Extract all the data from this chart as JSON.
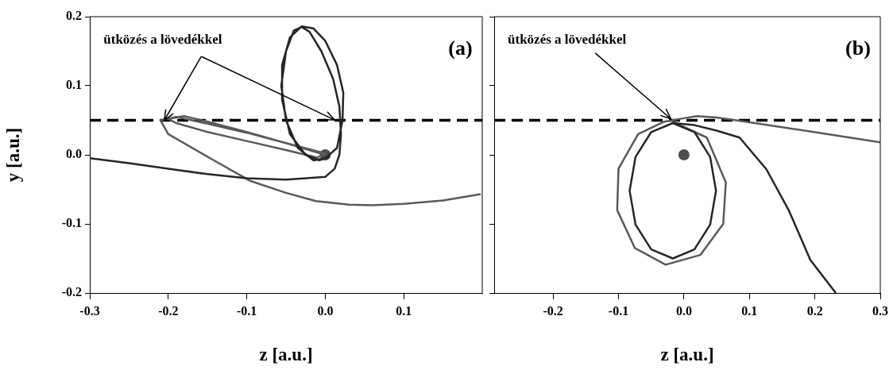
{
  "chart_data": [
    {
      "type": "line",
      "xlabel": "z [a.u.]",
      "ylabel": "y [a.u.]",
      "xlim": [
        -0.3,
        0.2
      ],
      "ylim": [
        -0.2,
        0.2
      ],
      "xticks": [
        -0.3,
        -0.2,
        -0.1,
        {
          "value": 0,
          "label": "0.0"
        },
        0.1
      ],
      "yticks": [
        -0.2,
        -0.1,
        {
          "value": 0,
          "label": "0.0"
        },
        0.1,
        0.2
      ],
      "grid": false,
      "legend": false,
      "marker": "none",
      "ref_lines": [
        {
          "axis": "y",
          "value": 0.05,
          "color": "#000000",
          "line_style": "dashed"
        }
      ],
      "annotations": [
        {
          "text": "ütközés a lövedékkel",
          "x": -0.205,
          "y": 0.05
        },
        "(a)"
      ],
      "series": [
        {
          "color": "#262626",
          "x": [
            -0.3,
            -0.25,
            -0.2,
            -0.15,
            -0.1,
            -0.05,
            0.0,
            0.012,
            0.018,
            0.02,
            0.018,
            0.01,
            -0.005,
            -0.02,
            -0.03,
            -0.04,
            -0.05,
            -0.056,
            -0.05,
            -0.035,
            -0.015,
            0.0,
            0.015,
            0.022,
            0.023,
            0.015,
            0.0,
            -0.015,
            -0.03,
            -0.045,
            -0.055,
            -0.055,
            -0.045,
            -0.025,
            -0.008,
            0.005
          ],
          "values": [
            -0.005,
            -0.012,
            -0.02,
            -0.028,
            -0.034,
            -0.036,
            -0.032,
            -0.02,
            0.0,
            0.03,
            0.07,
            0.11,
            0.15,
            0.178,
            0.185,
            0.18,
            0.15,
            0.1,
            0.05,
            0.01,
            -0.008,
            -0.005,
            0.01,
            0.05,
            0.09,
            0.13,
            0.165,
            0.183,
            0.186,
            0.17,
            0.13,
            0.08,
            0.03,
            0.0,
            -0.008,
            -0.003
          ]
        },
        {
          "color": "#5a5a5a",
          "x": [
            0.0,
            -0.05,
            -0.1,
            -0.15,
            -0.18,
            -0.2,
            -0.19,
            -0.15,
            -0.1,
            -0.05,
            -0.01,
            0.0,
            -0.05,
            -0.1,
            -0.15,
            -0.19,
            -0.21,
            -0.2,
            -0.145,
            -0.095,
            -0.05,
            -0.012,
            0.03,
            0.06,
            0.1,
            0.15,
            0.198
          ],
          "values": [
            0.0,
            0.017,
            0.033,
            0.048,
            0.056,
            0.052,
            0.046,
            0.033,
            0.02,
            0.007,
            -0.004,
            0.002,
            0.017,
            0.032,
            0.045,
            0.055,
            0.05,
            0.03,
            -0.006,
            -0.038,
            -0.055,
            -0.067,
            -0.072,
            -0.073,
            -0.071,
            -0.066,
            -0.057
          ]
        },
        {
          "type": "scatter",
          "marker": "circle",
          "color": "#4d4d4d",
          "x": [
            0.0
          ],
          "values": [
            0.0
          ]
        }
      ]
    },
    {
      "type": "line",
      "xlabel": "z [a.u.]",
      "xlim": [
        -0.29,
        0.3
      ],
      "ylim": [
        -0.2,
        0.2
      ],
      "xticks": [
        -0.2,
        -0.1,
        {
          "value": 0,
          "label": "0.0"
        },
        0.1,
        0.2,
        0.3
      ],
      "yticks": [
        -0.2,
        -0.1,
        0,
        0.1,
        0.2
      ],
      "tick_labels": "x",
      "grid": false,
      "legend": false,
      "marker": "none",
      "ref_lines": [
        {
          "axis": "y",
          "value": 0.05,
          "color": "#000000",
          "line_style": "dashed"
        }
      ],
      "annotations": [
        {
          "text": "ütközés a lövedékkel",
          "x": -0.02,
          "y": 0.052
        },
        "(b)"
      ],
      "series": [
        {
          "color": "#262626",
          "x": [
            -0.017,
            0.016,
            0.04,
            0.049,
            0.04,
            0.016,
            -0.017,
            -0.05,
            -0.074,
            -0.083,
            -0.074,
            -0.05,
            -0.017,
            0.016,
            0.05,
            0.085,
            0.126,
            0.16,
            0.193,
            0.232
          ],
          "values": [
            0.046,
            0.033,
            -0.003,
            -0.052,
            -0.101,
            -0.137,
            -0.15,
            -0.137,
            -0.101,
            -0.052,
            -0.003,
            0.033,
            0.046,
            0.043,
            0.035,
            0.025,
            -0.021,
            -0.08,
            -0.152,
            -0.2
          ]
        },
        {
          "color": "#5a5a5a",
          "x": [
            -0.018,
            0.035,
            0.064,
            0.06,
            0.025,
            -0.028,
            -0.075,
            -0.102,
            -0.1,
            -0.07,
            -0.03,
            0.0,
            0.02,
            0.05,
            0.08,
            0.15,
            0.22,
            0.3
          ],
          "values": [
            0.048,
            0.025,
            -0.04,
            -0.1,
            -0.145,
            -0.159,
            -0.135,
            -0.08,
            -0.02,
            0.03,
            0.048,
            0.053,
            0.056,
            0.054,
            0.05,
            0.04,
            0.03,
            0.018
          ]
        },
        {
          "type": "scatter",
          "marker": "circle",
          "color": "#4d4d4d",
          "x": [
            0.0
          ],
          "values": [
            0.0
          ]
        }
      ]
    }
  ]
}
